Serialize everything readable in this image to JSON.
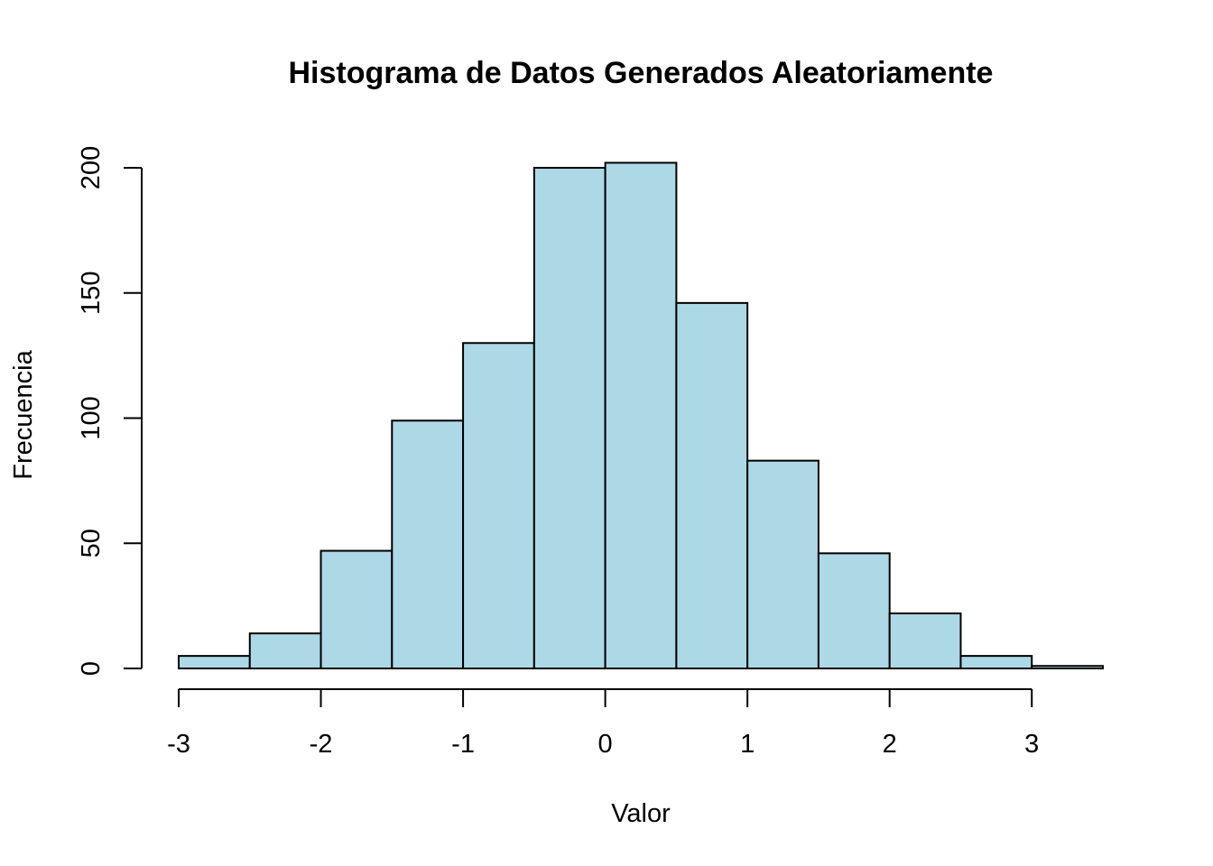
{
  "chart_data": {
    "type": "bar",
    "title": "Histograma de Datos Generados Aleatoriamente",
    "xlabel": "Valor",
    "ylabel": "Frecuencia",
    "bin_edges": [
      -3,
      -2.5,
      -2,
      -1.5,
      -1,
      -0.5,
      0,
      0.5,
      1,
      1.5,
      2,
      2.5,
      3,
      3.5
    ],
    "values": [
      5,
      14,
      47,
      99,
      130,
      200,
      202,
      146,
      83,
      46,
      22,
      5,
      1
    ],
    "bar_color": "#add8e6",
    "xlim": [
      -3,
      3.5
    ],
    "ylim": [
      0,
      200
    ],
    "x_ticks": [
      -3,
      -2,
      -1,
      0,
      1,
      2,
      3
    ],
    "x_tick_labels": [
      "-3",
      "-2",
      "-1",
      "0",
      "1",
      "2",
      "3"
    ],
    "y_ticks": [
      0,
      50,
      100,
      150,
      200
    ],
    "y_tick_labels": [
      "0",
      "50",
      "100",
      "150",
      "200"
    ],
    "grid": false,
    "legend": "none"
  }
}
